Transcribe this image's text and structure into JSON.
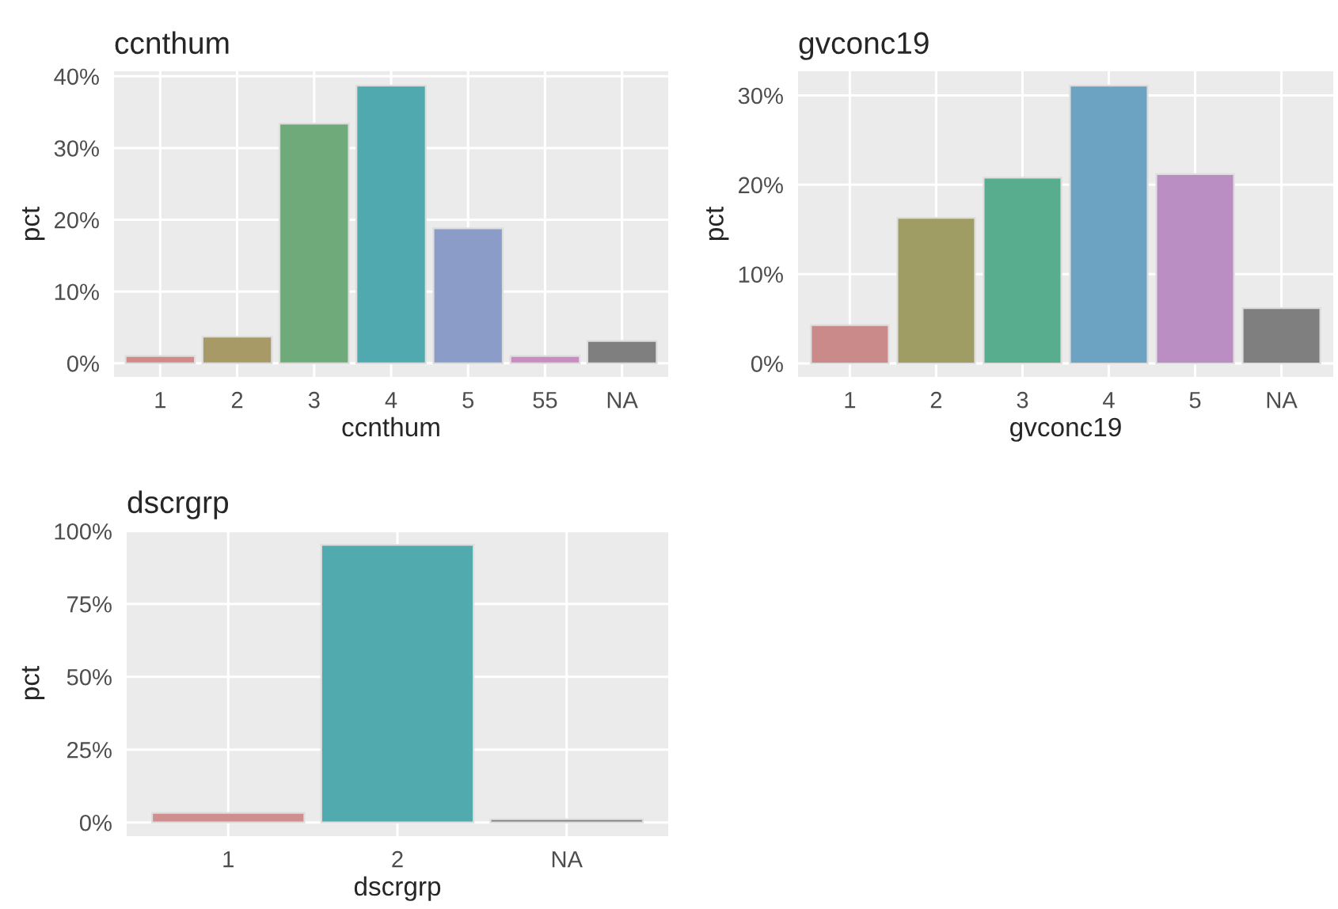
{
  "chart_data": [
    {
      "type": "bar",
      "title": "ccnthum",
      "xlabel": "ccnthum",
      "ylabel": "pct",
      "categories": [
        "1",
        "2",
        "3",
        "4",
        "5",
        "55",
        "NA"
      ],
      "values": [
        1.0,
        3.7,
        33.4,
        38.7,
        18.8,
        1.0,
        3.1
      ],
      "colors": [
        "#d08a8a",
        "#a89a66",
        "#6faa7a",
        "#4fa9ae",
        "#8c9cc9",
        "#c88cc0",
        "#7f7f7f"
      ],
      "ylim": [
        -1.9,
        40.7
      ],
      "yticks": [
        {
          "value": 0,
          "label": "0%"
        },
        {
          "value": 10,
          "label": "10%"
        },
        {
          "value": 20,
          "label": "20%"
        },
        {
          "value": 30,
          "label": "30%"
        },
        {
          "value": 40,
          "label": "40%"
        }
      ],
      "grid": true
    },
    {
      "type": "bar",
      "title": "gvconc19",
      "xlabel": "gvconc19",
      "ylabel": "pct",
      "categories": [
        "1",
        "2",
        "3",
        "4",
        "5",
        "NA"
      ],
      "values": [
        4.3,
        16.3,
        20.8,
        31.1,
        21.2,
        6.2
      ],
      "colors": [
        "#cb8a8a",
        "#a09d64",
        "#58ad8e",
        "#6ca3c3",
        "#bb8ec3",
        "#7f7f7f"
      ],
      "ylim": [
        -1.5,
        32.7
      ],
      "yticks": [
        {
          "value": 0,
          "label": "0%"
        },
        {
          "value": 10,
          "label": "10%"
        },
        {
          "value": 20,
          "label": "20%"
        },
        {
          "value": 30,
          "label": "30%"
        }
      ],
      "grid": true
    },
    {
      "type": "bar",
      "title": "dscrgrp",
      "xlabel": "dscrgrp",
      "ylabel": "pct",
      "categories": [
        "1",
        "2",
        "NA"
      ],
      "values": [
        3.3,
        95.3,
        1.1
      ],
      "colors": [
        "#cf8f8f",
        "#50aaae",
        "#7f7f7f"
      ],
      "ylim": [
        -4.7,
        100.2
      ],
      "yticks": [
        {
          "value": 0,
          "label": "0%"
        },
        {
          "value": 25,
          "label": "25%"
        },
        {
          "value": 50,
          "label": "50%"
        },
        {
          "value": 75,
          "label": "75%"
        },
        {
          "value": 100,
          "label": "100%"
        }
      ],
      "grid": true
    }
  ]
}
